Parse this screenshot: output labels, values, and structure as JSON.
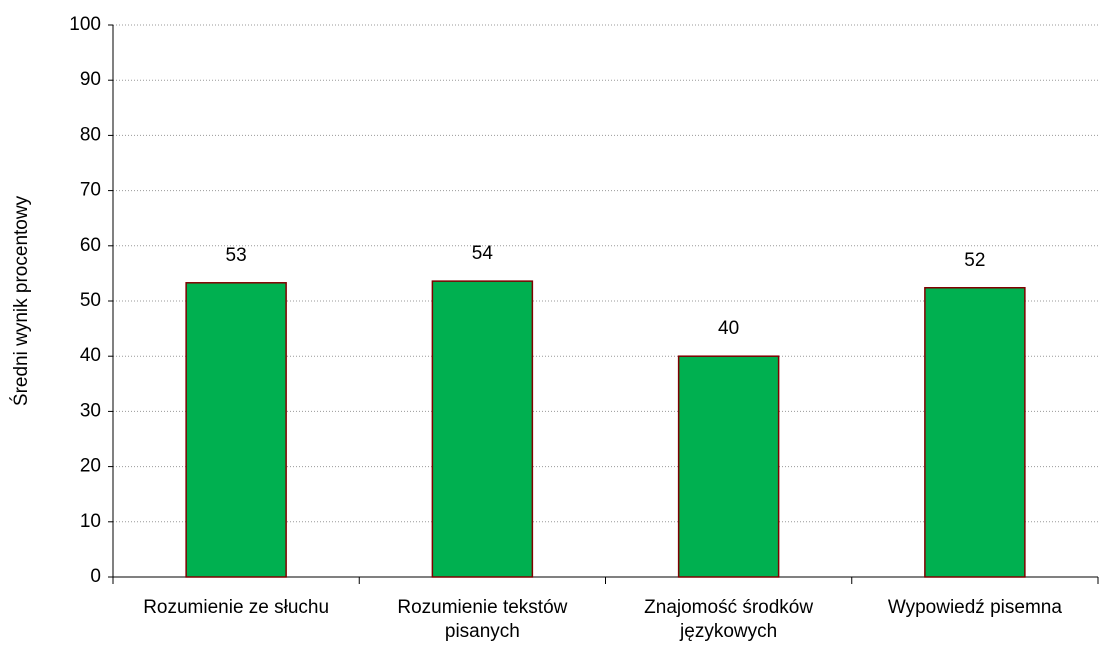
{
  "chart_data": {
    "type": "bar",
    "y_label": "Średni  wynik procentowy",
    "categories": [
      "Rozumienie ze słuchu",
      "Rozumienie tekstów pisanych",
      "Znajomość środków językowych",
      "Wypowiedź pisemna"
    ],
    "values": [
      53.3,
      53.6,
      40,
      52.4
    ],
    "value_labels": [
      "53",
      "54",
      "40",
      "52"
    ],
    "color": "#00b050",
    "edge_color": "#7f0000",
    "ylim": [
      0,
      100
    ],
    "yticks": [
      0,
      10,
      20,
      30,
      40,
      50,
      60,
      70,
      80,
      90,
      100
    ],
    "grid": true
  }
}
